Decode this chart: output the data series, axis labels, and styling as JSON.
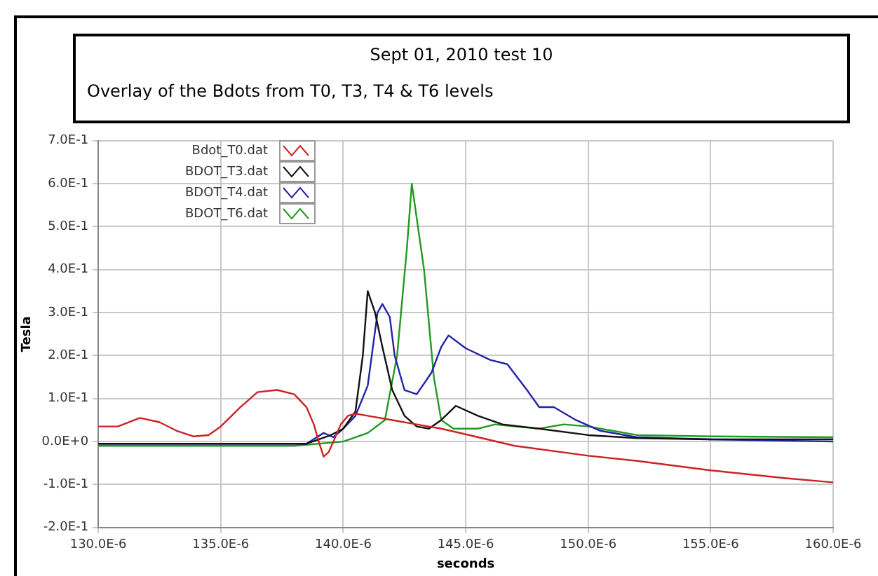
{
  "chart_data": {
    "type": "line",
    "title": "Sept 01, 2010 test 10",
    "subtitle": "Overlay of the Bdots from T0, T3, T4 & T6 levels",
    "xlabel": "seconds",
    "ylabel": "Tesla",
    "xlim": [
      0.00013,
      0.00016
    ],
    "xticks": [
      {
        "value": 0.00013,
        "label": "130.0E-6"
      },
      {
        "value": 0.000135,
        "label": "135.0E-6"
      },
      {
        "value": 0.00014,
        "label": "140.0E-6"
      },
      {
        "value": 0.000145,
        "label": "145.0E-6"
      },
      {
        "value": 0.00015,
        "label": "150.0E-6"
      },
      {
        "value": 0.000155,
        "label": "155.0E-6"
      },
      {
        "value": 0.00016,
        "label": "160.0E-6"
      }
    ],
    "ylim": [
      -0.2,
      0.7
    ],
    "yticks": [
      {
        "value": -0.2,
        "label": "-2.0E-1"
      },
      {
        "value": -0.1,
        "label": "-1.0E-1"
      },
      {
        "value": 0,
        "label": "0.0E+0"
      },
      {
        "value": 0.1,
        "label": "1.0E-1"
      },
      {
        "value": 0.2,
        "label": "2.0E-1"
      },
      {
        "value": 0.3,
        "label": "3.0E-1"
      },
      {
        "value": 0.4,
        "label": "4.0E-1"
      },
      {
        "value": 0.5,
        "label": "5.0E-1"
      },
      {
        "value": 0.6,
        "label": "6.0E-1"
      },
      {
        "value": 0.7,
        "label": "7.0E-1"
      }
    ],
    "grid": true,
    "legend": "top left",
    "marker": "none",
    "line_style": "solid",
    "series": [
      {
        "name": "Bdot_T0.dat",
        "color": "#cc2222",
        "x": [
          0.00013,
          0.0001308,
          0.0001317,
          0.0001325,
          0.0001332,
          0.0001339,
          0.0001345,
          0.000135,
          0.0001358,
          0.0001365,
          0.0001373,
          0.000138,
          0.0001385,
          0.0001388,
          0.000139,
          0.0001392,
          0.0001394,
          0.0001396,
          0.0001399,
          0.0001402,
          0.0001405,
          0.000141,
          0.000142,
          0.000143,
          0.000144,
          0.000145,
          0.000147,
          0.00015,
          0.000152,
          0.000155,
          0.000158,
          0.00016
        ],
        "values": [
          0.035,
          0.035,
          0.055,
          0.045,
          0.025,
          0.012,
          0.015,
          0.035,
          0.08,
          0.115,
          0.12,
          0.11,
          0.08,
          0.04,
          0.0,
          -0.035,
          -0.025,
          0.0,
          0.04,
          0.06,
          0.065,
          0.06,
          0.05,
          0.04,
          0.03,
          0.017,
          -0.01,
          -0.033,
          -0.045,
          -0.067,
          -0.085,
          -0.095
        ]
      },
      {
        "name": "BDOT_T3.dat",
        "color": "#111111",
        "x": [
          0.00013,
          0.0001385,
          0.000139,
          0.0001395,
          0.00014,
          0.0001405,
          0.0001408,
          0.000141,
          0.0001413,
          0.0001416,
          0.000142,
          0.0001425,
          0.000143,
          0.0001435,
          0.000144,
          0.0001446,
          0.0001455,
          0.0001465,
          0.000148,
          0.00015,
          0.000152,
          0.000155,
          0.00016
        ],
        "values": [
          -0.005,
          -0.005,
          0.005,
          0.015,
          0.03,
          0.07,
          0.2,
          0.35,
          0.3,
          0.22,
          0.12,
          0.06,
          0.035,
          0.03,
          0.05,
          0.083,
          0.06,
          0.04,
          0.03,
          0.015,
          0.008,
          0.005,
          0.005
        ]
      },
      {
        "name": "BDOT_T4.dat",
        "color": "#2222aa",
        "x": [
          0.00013,
          0.0001385,
          0.0001392,
          0.0001396,
          0.00014,
          0.0001405,
          0.000141,
          0.0001414,
          0.0001416,
          0.0001419,
          0.0001421,
          0.0001425,
          0.000143,
          0.0001436,
          0.000144,
          0.0001443,
          0.000145,
          0.000146,
          0.0001467,
          0.0001475,
          0.000148,
          0.0001486,
          0.0001495,
          0.0001505,
          0.000152,
          0.000155,
          0.00016
        ],
        "values": [
          -0.005,
          -0.005,
          0.02,
          0.01,
          0.03,
          0.06,
          0.13,
          0.3,
          0.32,
          0.29,
          0.2,
          0.12,
          0.11,
          0.16,
          0.22,
          0.247,
          0.217,
          0.19,
          0.18,
          0.12,
          0.08,
          0.08,
          0.05,
          0.025,
          0.01,
          0.005,
          0.0
        ]
      },
      {
        "name": "BDOT_T6.dat",
        "color": "#229922",
        "x": [
          0.00013,
          0.000138,
          0.00014,
          0.000141,
          0.0001417,
          0.0001422,
          0.0001426,
          0.0001428,
          0.0001433,
          0.0001437,
          0.000144,
          0.0001445,
          0.0001455,
          0.0001462,
          0.000147,
          0.000148,
          0.000149,
          0.00015,
          0.000151,
          0.000152,
          0.000155,
          0.00016
        ],
        "values": [
          -0.01,
          -0.01,
          0.0,
          0.02,
          0.05,
          0.2,
          0.45,
          0.6,
          0.4,
          0.15,
          0.05,
          0.03,
          0.03,
          0.04,
          0.035,
          0.03,
          0.04,
          0.035,
          0.025,
          0.015,
          0.012,
          0.01
        ]
      }
    ]
  }
}
